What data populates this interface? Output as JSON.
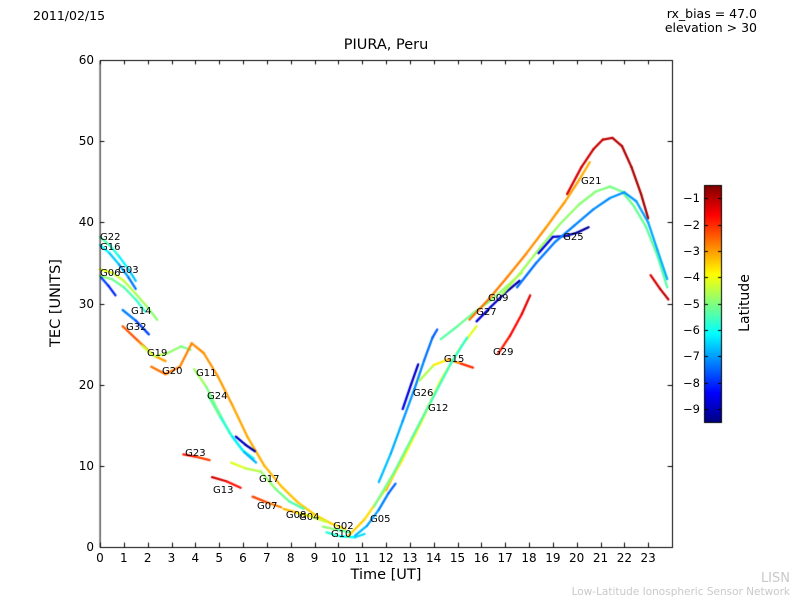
{
  "header": {
    "date": "2011/02/15",
    "rx_bias": "rx_bias = 47.0",
    "elevation": "elevation > 30"
  },
  "watermark": {
    "line1": "LISN",
    "line2": "Low-Latitude Ionospheric Sensor Network"
  },
  "chart_data": {
    "type": "line",
    "title": "PIURA, Peru",
    "xlabel": "Time [UT]",
    "ylabel": "TEC [UNITS]",
    "xlim": [
      0,
      24
    ],
    "ylim": [
      0,
      60
    ],
    "xticks": [
      0,
      1,
      2,
      3,
      4,
      5,
      6,
      7,
      8,
      9,
      10,
      11,
      12,
      13,
      14,
      15,
      16,
      17,
      18,
      19,
      20,
      21,
      22,
      23
    ],
    "yticks": [
      0,
      10,
      20,
      30,
      40,
      50,
      60
    ],
    "grid": false,
    "legend": false,
    "colorbar": {
      "label": "Latitude",
      "colormap": "jet",
      "vmin": -9.5,
      "vmax": -0.5,
      "ticks": [
        -1,
        -2,
        -3,
        -4,
        -5,
        -6,
        -7,
        -8,
        -9
      ]
    },
    "series": [
      {
        "name": "G22",
        "lat": [
          -5.2,
          -6.8
        ],
        "label_at": [
          0.0,
          38.7
        ],
        "pts": [
          [
            0,
            38.2
          ],
          [
            0.4,
            37.2
          ],
          [
            0.8,
            35.8
          ],
          [
            1.2,
            34.2
          ],
          [
            1.5,
            32.8
          ]
        ]
      },
      {
        "name": "G16",
        "lat": [
          -6.0,
          -7.5
        ],
        "label_at": [
          0.0,
          37.4
        ],
        "pts": [
          [
            0,
            37.2
          ],
          [
            0.4,
            36.2
          ],
          [
            0.8,
            34.8
          ],
          [
            1.2,
            33.2
          ],
          [
            1.5,
            31.8
          ]
        ]
      },
      {
        "name": "G03",
        "lat": [
          -4.0,
          -5.0
        ],
        "label_at": [
          0.76,
          34.6
        ],
        "pts": [
          [
            0,
            34.2
          ],
          [
            0.5,
            33.8
          ],
          [
            1,
            32.8
          ],
          [
            1.5,
            31.2
          ],
          [
            2,
            29.5
          ],
          [
            2.4,
            28
          ]
        ]
      },
      {
        "name": "G06",
        "lat": [
          -4.8,
          -5.8
        ],
        "label_at": [
          0.0,
          34.2
        ],
        "pts": [
          [
            0,
            33.4
          ],
          [
            0.5,
            33
          ],
          [
            1,
            32
          ],
          [
            1.5,
            30.5
          ],
          [
            1.9,
            29
          ]
        ]
      },
      {
        "name": "",
        "lat": [
          -7.6,
          -8.2
        ],
        "pts": [
          [
            0.05,
            33.2
          ],
          [
            0.35,
            32.2
          ],
          [
            0.65,
            31
          ]
        ]
      },
      {
        "name": "G14",
        "lat": [
          -7.0,
          -8.0
        ],
        "label_at": [
          1.3,
          29.6
        ],
        "pts": [
          [
            0.95,
            29.2
          ],
          [
            1.5,
            27.9
          ],
          [
            2.05,
            26.2
          ]
        ]
      },
      {
        "name": "G32",
        "lat": [
          -2.2,
          -3.2
        ],
        "label_at": [
          1.09,
          27.6
        ],
        "pts": [
          [
            0.95,
            27.2
          ],
          [
            1.6,
            25.4
          ],
          [
            2.25,
            23.6
          ],
          [
            2.75,
            22.9
          ]
        ]
      },
      {
        "name": "G19",
        "lat": [
          -4.2,
          -5.2
        ],
        "label_at": [
          1.97,
          24.4
        ],
        "pts": [
          [
            1.75,
            24.8
          ],
          [
            2.3,
            23.5
          ],
          [
            2.85,
            23.9
          ],
          [
            3.4,
            24.7
          ],
          [
            3.8,
            24.3
          ]
        ]
      },
      {
        "name": "G20",
        "lat": [
          -2.6,
          -3.6
        ],
        "label_at": [
          2.6,
          22.2
        ],
        "pts": [
          [
            2.15,
            22.2
          ],
          [
            2.75,
            21.3
          ],
          [
            3.35,
            22.2
          ],
          [
            3.85,
            25.1
          ],
          [
            4.35,
            23.9
          ],
          [
            4.95,
            21
          ],
          [
            5.55,
            17.5
          ],
          [
            6.2,
            13.5
          ],
          [
            6.9,
            10
          ],
          [
            7.6,
            7.5
          ],
          [
            8.3,
            5.5
          ],
          [
            9,
            4
          ],
          [
            9.7,
            2.9
          ],
          [
            10.3,
            2.2
          ]
        ]
      },
      {
        "name": "G11",
        "lat": [
          -4.6,
          -6.0
        ],
        "label_at": [
          4.03,
          21.9
        ],
        "pts": [
          [
            3.95,
            21.9
          ],
          [
            4.45,
            19.8
          ],
          [
            4.95,
            16.8
          ],
          [
            5.45,
            14
          ],
          [
            5.95,
            12
          ],
          [
            6.45,
            10.9
          ]
        ]
      },
      {
        "name": "G24",
        "lat": [
          -5.0,
          -7.0
        ],
        "label_at": [
          4.49,
          19.1
        ],
        "pts": [
          [
            4.55,
            18.6
          ],
          [
            5.05,
            16
          ],
          [
            5.55,
            13.6
          ],
          [
            6.05,
            11.7
          ],
          [
            6.55,
            10.4
          ]
        ]
      },
      {
        "name": "G23",
        "lat": [
          -1.6,
          -2.4
        ],
        "label_at": [
          3.57,
          12.1
        ],
        "pts": [
          [
            3.5,
            11.4
          ],
          [
            4.05,
            11.1
          ],
          [
            4.6,
            10.7
          ]
        ]
      },
      {
        "name": "G13",
        "lat": [
          -1.0,
          -2.0
        ],
        "label_at": [
          4.74,
          7.5
        ],
        "pts": [
          [
            4.7,
            8.6
          ],
          [
            5.3,
            8.1
          ],
          [
            5.9,
            7.3
          ]
        ]
      },
      {
        "name": "G17",
        "lat": [
          -4.0,
          -5.6
        ],
        "label_at": [
          6.67,
          8.9
        ],
        "pts": [
          [
            5.5,
            10.4
          ],
          [
            6.1,
            9.7
          ],
          [
            6.75,
            9.3
          ],
          [
            7.35,
            7.2
          ],
          [
            7.95,
            5.6
          ],
          [
            8.55,
            4.7
          ]
        ]
      },
      {
        "name": "G07",
        "lat": [
          -2.0,
          -3.0
        ],
        "label_at": [
          6.59,
          5.5
        ],
        "pts": [
          [
            6.4,
            6.2
          ],
          [
            7,
            5.5
          ],
          [
            7.6,
            4.9
          ]
        ]
      },
      {
        "name": "G08",
        "lat": [
          -3.0,
          -4.0
        ],
        "label_at": [
          7.8,
          4.4
        ],
        "pts": [
          [
            7.7,
            4.7
          ],
          [
            8.3,
            4.2
          ],
          [
            8.9,
            3.8
          ]
        ]
      },
      {
        "name": "G04",
        "lat": [
          -3.6,
          -4.6
        ],
        "label_at": [
          8.35,
          4.2
        ],
        "pts": [
          [
            8.3,
            4.2
          ],
          [
            8.9,
            3.7
          ],
          [
            9.5,
            3.1
          ]
        ]
      },
      {
        "name": "G02",
        "lat": [
          -4.6,
          -5.6
        ],
        "label_at": [
          9.78,
          3.1
        ],
        "pts": [
          [
            9.35,
            2.5
          ],
          [
            9.95,
            2.1
          ],
          [
            10.5,
            1.8
          ]
        ]
      },
      {
        "name": "G10",
        "lat": [
          -5.6,
          -6.6
        ],
        "label_at": [
          9.69,
          2.1
        ],
        "pts": [
          [
            9.5,
            1.8
          ],
          [
            10.1,
            1.3
          ],
          [
            10.7,
            1.2
          ],
          [
            11.1,
            1.6
          ]
        ]
      },
      {
        "name": "G05",
        "lat": [
          -6.6,
          -7.6
        ],
        "label_at": [
          11.33,
          3.9
        ],
        "pts": [
          [
            10.7,
            1.4
          ],
          [
            11.2,
            2.6
          ],
          [
            11.7,
            4.6
          ],
          [
            12.1,
            6.6
          ],
          [
            12.4,
            7.8
          ]
        ]
      },
      {
        "name": "",
        "lat": [
          -8.8,
          -9.2
        ],
        "pts": [
          [
            5.7,
            13.6
          ],
          [
            6.1,
            12.6
          ],
          [
            6.5,
            11.8
          ]
        ]
      },
      {
        "name": "G26",
        "lat": [
          -6.6,
          -7.6
        ],
        "label_at": [
          13.13,
          19.5
        ],
        "pts": [
          [
            11.7,
            8
          ],
          [
            12.2,
            11.5
          ],
          [
            12.7,
            15.5
          ],
          [
            13.2,
            19.5
          ],
          [
            13.6,
            23
          ],
          [
            13.95,
            25.8
          ],
          [
            14.15,
            26.8
          ]
        ]
      },
      {
        "name": "G12",
        "lat": [
          -3.0,
          -4.0
        ],
        "label_at": [
          13.76,
          17.6
        ],
        "pts": [
          [
            12,
            7
          ],
          [
            12.6,
            10.5
          ],
          [
            13.2,
            14
          ],
          [
            13.8,
            17.5
          ],
          [
            14.3,
            20.5
          ],
          [
            14.65,
            22.2
          ]
        ]
      },
      {
        "name": "G15",
        "lat": [
          -5.0,
          -1.6
        ],
        "label_at": [
          14.43,
          23.7
        ],
        "pts": [
          [
            13.4,
            20.5
          ],
          [
            14,
            22.4
          ],
          [
            14.6,
            23.1
          ],
          [
            15.15,
            22.6
          ],
          [
            15.65,
            22.1
          ]
        ]
      },
      {
        "name": "",
        "lat": [
          -3.4,
          -4.2
        ],
        "pts": [
          [
            10.4,
            1.3
          ],
          [
            11.1,
            3.4
          ],
          [
            11.9,
            6.8
          ],
          [
            12.7,
            10.8
          ],
          [
            13.5,
            15.5
          ],
          [
            14.3,
            20.5
          ],
          [
            15.1,
            24.5
          ],
          [
            15.8,
            27.2
          ]
        ]
      },
      {
        "name": "",
        "lat": [
          -5.0,
          -5.8
        ],
        "pts": [
          [
            11.5,
            5
          ],
          [
            12.3,
            9
          ],
          [
            13.1,
            13.5
          ],
          [
            13.9,
            18
          ],
          [
            14.7,
            22.5
          ],
          [
            15.4,
            25.8
          ]
        ]
      },
      {
        "name": "",
        "lat": [
          -8.5,
          -9.0
        ],
        "pts": [
          [
            12.7,
            17
          ],
          [
            13.05,
            20
          ],
          [
            13.35,
            22.5
          ]
        ]
      },
      {
        "name": "G27",
        "lat": [
          -5.4,
          -4.6
        ],
        "label_at": [
          15.78,
          29.4
        ],
        "pts": [
          [
            14.3,
            25.6
          ],
          [
            15,
            27.2
          ],
          [
            15.7,
            28.9
          ],
          [
            16.4,
            30.4
          ],
          [
            17.1,
            32.2
          ],
          [
            17.7,
            33.8
          ]
        ]
      },
      {
        "name": "G09",
        "lat": [
          -8.6,
          -9.2
        ],
        "label_at": [
          16.28,
          31.2
        ],
        "pts": [
          [
            15.8,
            27.8
          ],
          [
            16.4,
            29.6
          ],
          [
            17,
            31.3
          ],
          [
            17.6,
            32.8
          ]
        ]
      },
      {
        "name": "G29",
        "lat": [
          -2.0,
          -1.3
        ],
        "label_at": [
          16.49,
          24.5
        ],
        "pts": [
          [
            16.7,
            23.8
          ],
          [
            17.2,
            26
          ],
          [
            17.7,
            28.7
          ],
          [
            18.05,
            31
          ]
        ]
      },
      {
        "name": "G21",
        "lat": [
          -4.6,
          -5.4
        ],
        "label_at": [
          20.18,
          45.6
        ],
        "pts": [
          [
            16.9,
            31.2
          ],
          [
            17.7,
            34
          ],
          [
            18.5,
            37
          ],
          [
            19.3,
            39.8
          ],
          [
            20.1,
            42.2
          ],
          [
            20.8,
            43.8
          ],
          [
            21.4,
            44.4
          ],
          [
            21.9,
            43.8
          ],
          [
            22.4,
            42
          ],
          [
            22.9,
            39.5
          ],
          [
            23.4,
            35.8
          ],
          [
            23.8,
            32
          ]
        ]
      },
      {
        "name": "G25",
        "lat": [
          -8.6,
          -9.3
        ],
        "label_at": [
          19.43,
          38.7
        ],
        "pts": [
          [
            18.4,
            36.2
          ],
          [
            19,
            38.2
          ],
          [
            19.5,
            38.3
          ],
          [
            20,
            38.7
          ],
          [
            20.5,
            39.4
          ]
        ]
      },
      {
        "name": "",
        "lat": [
          -2.6,
          -3.2
        ],
        "pts": [
          [
            15.5,
            28
          ],
          [
            16.3,
            30.5
          ],
          [
            17.1,
            33.3
          ],
          [
            17.9,
            36.2
          ],
          [
            18.7,
            39.3
          ],
          [
            19.5,
            42.5
          ],
          [
            20.1,
            45.2
          ],
          [
            20.55,
            47.4
          ]
        ]
      },
      {
        "name": "",
        "lat": [
          -1.3,
          -0.8
        ],
        "pts": [
          [
            19.6,
            43.5
          ],
          [
            20.2,
            46.8
          ],
          [
            20.7,
            49
          ],
          [
            21.1,
            50.2
          ],
          [
            21.5,
            50.4
          ],
          [
            21.9,
            49.4
          ],
          [
            22.3,
            46.8
          ],
          [
            22.7,
            43.5
          ],
          [
            23,
            40.5
          ]
        ]
      },
      {
        "name": "",
        "lat": [
          -7.4,
          -6.8
        ],
        "pts": [
          [
            17.5,
            32
          ],
          [
            18.3,
            35
          ],
          [
            19.1,
            37.6
          ],
          [
            19.9,
            39.6
          ],
          [
            20.7,
            41.6
          ],
          [
            21.4,
            43
          ],
          [
            22,
            43.7
          ],
          [
            22.5,
            42.6
          ],
          [
            23,
            40
          ],
          [
            23.4,
            36.5
          ],
          [
            23.8,
            33
          ]
        ]
      },
      {
        "name": "",
        "lat": [
          -1.4,
          -1.0
        ],
        "pts": [
          [
            23.1,
            33.5
          ],
          [
            23.5,
            31.8
          ],
          [
            23.85,
            30.5
          ]
        ]
      }
    ]
  }
}
